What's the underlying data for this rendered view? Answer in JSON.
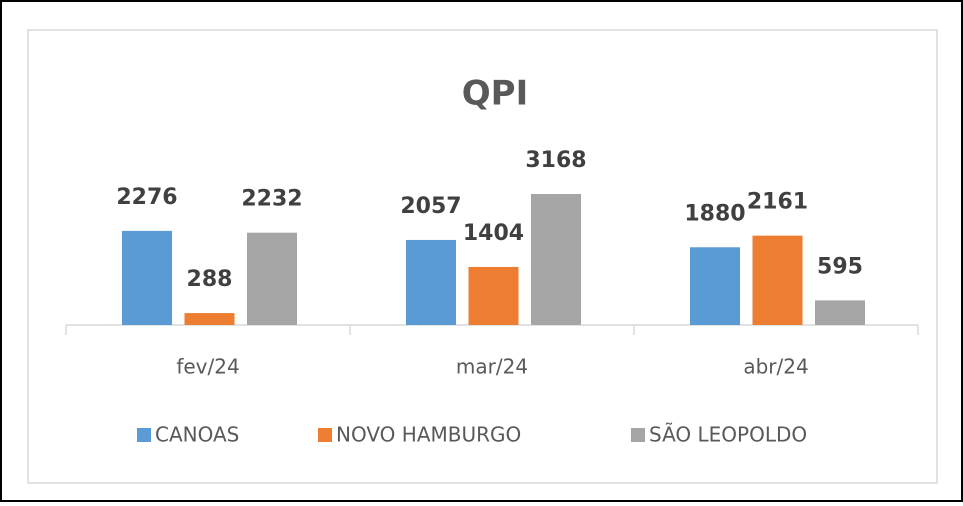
{
  "chart_data": {
    "type": "bar",
    "title": "QPI",
    "categories": [
      "fev/24",
      "mar/24",
      "abr/24"
    ],
    "series": [
      {
        "name": "CANOAS",
        "color": "#5b9bd5",
        "values": [
          2276,
          2057,
          1880
        ]
      },
      {
        "name": "NOVO HAMBURGO",
        "color": "#ed7d31",
        "values": [
          288,
          1404,
          2161
        ]
      },
      {
        "name": "SÃO LEOPOLDO",
        "color": "#a5a5a5",
        "values": [
          2232,
          3168,
          595
        ]
      }
    ]
  }
}
